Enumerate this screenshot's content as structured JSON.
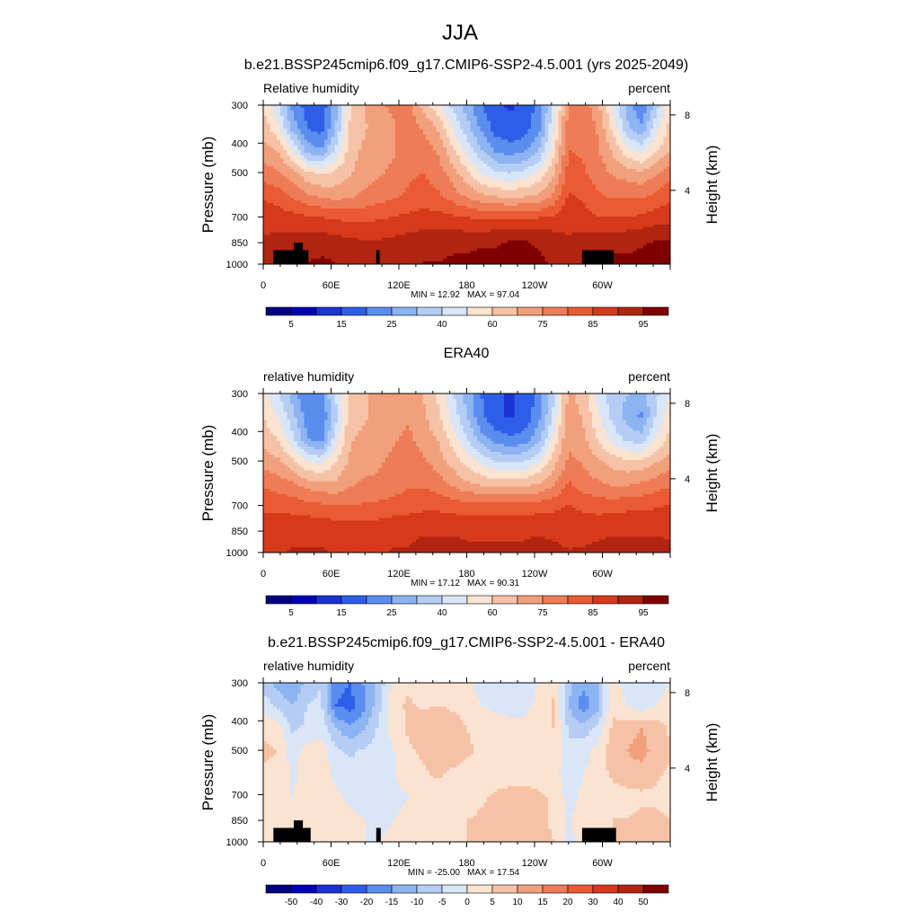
{
  "figure": {
    "title": "JJA"
  },
  "chart_data": [
    {
      "type": "heatmap",
      "title": "b.e21.BSSP245cmip6.f09_g17.CMIP6-SSP2-4.5.001 (yrs 2025-2049)",
      "left_label": "Relative humidity",
      "right_label": "percent",
      "ylabel": "Pressure (mb)",
      "ylabel_right": "Height (km)",
      "x_ticks": [
        "0",
        "60E",
        "120E",
        "180",
        "120W",
        "60W"
      ],
      "y_ticks": [
        "300",
        "400",
        "500",
        "700",
        "850",
        "1000"
      ],
      "height_ticks": [
        "8",
        "4"
      ],
      "xlim": [
        0,
        360
      ],
      "ylim": [
        1000,
        300
      ],
      "min_text": "MIN =  12.92",
      "max_text": "MAX =  97.04",
      "colorbar_labels": [
        "5",
        "15",
        "25",
        "40",
        "60",
        "75",
        "85",
        "95"
      ],
      "colorbar_colors": [
        "#00007f",
        "#0000b4",
        "#1a32d4",
        "#2e5ee8",
        "#5b8def",
        "#8cb3f2",
        "#b5cdf4",
        "#d9e6f7",
        "#fbe3d2",
        "#f6c2a6",
        "#f29f7c",
        "#ee7c56",
        "#ea5a33",
        "#d63a1a",
        "#b02410",
        "#7f0000"
      ],
      "cmin": 0,
      "cmax": 100,
      "field": [
        [
          55,
          45,
          30,
          22,
          20,
          35,
          55,
          62,
          68,
          70,
          72,
          60,
          52,
          42,
          35,
          25,
          20,
          18,
          20,
          28,
          45,
          70,
          72,
          65,
          50,
          35,
          25,
          40,
          55
        ],
        [
          60,
          52,
          35,
          25,
          22,
          38,
          58,
          62,
          66,
          68,
          72,
          68,
          62,
          50,
          40,
          30,
          22,
          20,
          22,
          30,
          50,
          72,
          74,
          68,
          55,
          40,
          32,
          48,
          58
        ],
        [
          65,
          62,
          50,
          35,
          32,
          45,
          60,
          64,
          66,
          68,
          73,
          72,
          68,
          58,
          48,
          38,
          30,
          28,
          30,
          38,
          55,
          75,
          74,
          70,
          62,
          52,
          48,
          55,
          62
        ],
        [
          72,
          70,
          65,
          58,
          55,
          58,
          62,
          66,
          68,
          70,
          74,
          75,
          72,
          66,
          58,
          50,
          45,
          44,
          46,
          52,
          62,
          78,
          76,
          72,
          68,
          66,
          64,
          68,
          72
        ],
        [
          80,
          78,
          74,
          70,
          68,
          66,
          68,
          70,
          72,
          74,
          76,
          78,
          76,
          72,
          68,
          64,
          62,
          61,
          62,
          64,
          70,
          82,
          80,
          76,
          74,
          74,
          74,
          76,
          80
        ],
        [
          86,
          85,
          84,
          83,
          82,
          81,
          80,
          80,
          81,
          82,
          83,
          84,
          84,
          83,
          82,
          81,
          81,
          81,
          81,
          82,
          83,
          86,
          84,
          82,
          82,
          82,
          83,
          85,
          86
        ],
        [
          88,
          89,
          90,
          91,
          91,
          90,
          89,
          88,
          88,
          89,
          90,
          91,
          91,
          92,
          92,
          93,
          93,
          94,
          94,
          93,
          91,
          88,
          90,
          91,
          92,
          92,
          93,
          94,
          94
        ],
        [
          90,
          91,
          93,
          94,
          95,
          94,
          92,
          91,
          91,
          92,
          93,
          94,
          94,
          95,
          95,
          96,
          96,
          97,
          96,
          95,
          93,
          90,
          92,
          94,
          95,
          95,
          96,
          96,
          96
        ]
      ],
      "topography": [
        {
          "lon0": 9,
          "lon1": 40,
          "pres": 900
        },
        {
          "lon0": 27,
          "lon1": 35,
          "pres": 850
        },
        {
          "lon0": 100,
          "lon1": 103,
          "pres": 900
        },
        {
          "lon0": 282,
          "lon1": 310,
          "pres": 900
        }
      ]
    },
    {
      "type": "heatmap",
      "title": "ERA40",
      "left_label": "relative humidity",
      "right_label": "percent",
      "ylabel": "Pressure (mb)",
      "ylabel_right": "Height (km)",
      "x_ticks": [
        "0",
        "60E",
        "120E",
        "180",
        "120W",
        "60W"
      ],
      "y_ticks": [
        "300",
        "400",
        "500",
        "700",
        "850",
        "1000"
      ],
      "height_ticks": [
        "8",
        "4"
      ],
      "xlim": [
        0,
        360
      ],
      "ylim": [
        1000,
        300
      ],
      "min_text": "MIN =  17.12",
      "max_text": "MAX =  90.31",
      "colorbar_labels": [
        "5",
        "15",
        "25",
        "40",
        "60",
        "75",
        "85",
        "95"
      ],
      "colorbar_colors": [
        "#00007f",
        "#0000b4",
        "#1a32d4",
        "#2e5ee8",
        "#5b8def",
        "#8cb3f2",
        "#b5cdf4",
        "#d9e6f7",
        "#fbe3d2",
        "#f6c2a6",
        "#f29f7c",
        "#ee7c56",
        "#ea5a33",
        "#d63a1a",
        "#b02410",
        "#7f0000"
      ],
      "cmin": 0,
      "cmax": 100,
      "field": [
        [
          52,
          45,
          35,
          25,
          30,
          45,
          58,
          62,
          64,
          66,
          66,
          62,
          55,
          45,
          35,
          25,
          20,
          18,
          20,
          28,
          42,
          64,
          60,
          48,
          40,
          38,
          35,
          42,
          50
        ],
        [
          56,
          50,
          40,
          28,
          25,
          42,
          60,
          62,
          64,
          66,
          68,
          64,
          58,
          48,
          38,
          26,
          20,
          18,
          20,
          30,
          46,
          66,
          62,
          52,
          42,
          35,
          30,
          44,
          54
        ],
        [
          60,
          56,
          46,
          32,
          28,
          48,
          62,
          64,
          66,
          68,
          70,
          66,
          62,
          54,
          44,
          34,
          28,
          26,
          28,
          36,
          52,
          68,
          64,
          56,
          48,
          42,
          40,
          50,
          58
        ],
        [
          66,
          64,
          58,
          50,
          48,
          56,
          64,
          66,
          68,
          70,
          72,
          70,
          66,
          60,
          54,
          48,
          44,
          42,
          44,
          50,
          60,
          70,
          68,
          64,
          60,
          58,
          58,
          62,
          66
        ],
        [
          74,
          72,
          70,
          66,
          64,
          64,
          68,
          70,
          70,
          72,
          74,
          74,
          72,
          68,
          64,
          62,
          60,
          60,
          61,
          63,
          68,
          76,
          72,
          70,
          68,
          68,
          70,
          72,
          74
        ],
        [
          80,
          80,
          79,
          78,
          77,
          76,
          76,
          76,
          77,
          78,
          79,
          80,
          80,
          79,
          78,
          78,
          78,
          78,
          78,
          79,
          80,
          82,
          80,
          79,
          79,
          80,
          80,
          81,
          82
        ],
        [
          84,
          85,
          86,
          86,
          86,
          85,
          84,
          84,
          85,
          86,
          86,
          87,
          87,
          87,
          87,
          87,
          87,
          87,
          87,
          87,
          86,
          85,
          86,
          86,
          87,
          87,
          87,
          87,
          87
        ],
        [
          86,
          87,
          88,
          88,
          88,
          87,
          86,
          86,
          87,
          88,
          88,
          89,
          89,
          89,
          88,
          88,
          88,
          88,
          88,
          89,
          89,
          88,
          88,
          89,
          89,
          89,
          89,
          89,
          88
        ]
      ],
      "topography": []
    },
    {
      "type": "heatmap",
      "title": "b.e21.BSSP245cmip6.f09_g17.CMIP6-SSP2-4.5.001 - ERA40",
      "left_label": "relative humidity",
      "right_label": "percent",
      "ylabel": "Pressure (mb)",
      "ylabel_right": "Height (km)",
      "x_ticks": [
        "0",
        "60E",
        "120E",
        "180",
        "120W",
        "60W"
      ],
      "y_ticks": [
        "300",
        "400",
        "500",
        "700",
        "850",
        "1000"
      ],
      "height_ticks": [
        "8",
        "4"
      ],
      "xlim": [
        0,
        360
      ],
      "ylim": [
        1000,
        300
      ],
      "min_text": "MIN = -25.00",
      "max_text": "MAX =  17.54",
      "colorbar_labels": [
        "-50",
        "-40",
        "-30",
        "-20",
        "-15",
        "-10",
        "-5",
        "0",
        "5",
        "10",
        "15",
        "20",
        "30",
        "40",
        "50"
      ],
      "colorbar_colors": [
        "#00007f",
        "#0000b4",
        "#1a32d4",
        "#2e5ee8",
        "#5b8def",
        "#8cb3f2",
        "#b5cdf4",
        "#d9e6f7",
        "#fbe3d2",
        "#f6c2a6",
        "#f29f7c",
        "#ee7c56",
        "#ea5a33",
        "#d63a1a",
        "#b02410",
        "#7f0000"
      ],
      "colorbar_levels": [
        -50,
        -40,
        -30,
        -20,
        -15,
        -10,
        -5,
        0,
        5,
        10,
        15,
        20,
        30,
        40,
        50
      ],
      "field": [
        [
          -8,
          -12,
          -15,
          -8,
          -5,
          -18,
          -20,
          -14,
          -8,
          2,
          4,
          2,
          2,
          2,
          1,
          -2,
          -3,
          -2,
          -2,
          0,
          3,
          -8,
          -14,
          -10,
          2,
          -2,
          -5,
          -3,
          0
        ],
        [
          -2,
          -6,
          -10,
          -5,
          -4,
          -20,
          -22,
          -16,
          -6,
          3,
          6,
          4,
          5,
          4,
          3,
          0,
          -1,
          -1,
          -2,
          2,
          6,
          -10,
          -18,
          -12,
          4,
          0,
          -3,
          0,
          3
        ],
        [
          4,
          3,
          -6,
          -4,
          -2,
          -10,
          -14,
          -10,
          -4,
          2,
          6,
          8,
          10,
          8,
          5,
          3,
          2,
          1,
          2,
          4,
          5,
          -6,
          -8,
          -4,
          6,
          8,
          10,
          8,
          4
        ],
        [
          6,
          5,
          -2,
          2,
          3,
          -4,
          -6,
          -4,
          -2,
          0,
          4,
          6,
          10,
          8,
          6,
          4,
          3,
          2,
          2,
          4,
          4,
          -4,
          -2,
          2,
          8,
          10,
          12,
          8,
          6
        ],
        [
          4,
          4,
          -1,
          3,
          4,
          -2,
          -3,
          -2,
          -1,
          0,
          2,
          4,
          6,
          4,
          3,
          3,
          2,
          1,
          2,
          2,
          2,
          -3,
          0,
          2,
          6,
          8,
          8,
          6,
          4
        ],
        [
          2,
          2,
          0,
          1,
          2,
          1,
          -1,
          -2,
          -2,
          -1,
          0,
          2,
          2,
          2,
          1,
          4,
          6,
          8,
          8,
          6,
          4,
          -2,
          1,
          2,
          3,
          3,
          4,
          4,
          3
        ],
        [
          1,
          1,
          1,
          2,
          3,
          2,
          1,
          0,
          -1,
          0,
          1,
          2,
          3,
          4,
          5,
          6,
          7,
          8,
          8,
          6,
          4,
          -1,
          3,
          4,
          5,
          5,
          6,
          6,
          5
        ],
        [
          2,
          2,
          2,
          3,
          3,
          2,
          1,
          0,
          0,
          1,
          2,
          2,
          3,
          4,
          5,
          6,
          7,
          8,
          8,
          7,
          5,
          -2,
          3,
          4,
          5,
          5,
          6,
          6,
          5
        ]
      ],
      "topography": [
        {
          "lon0": 9,
          "lon1": 42,
          "pres": 900
        },
        {
          "lon0": 27,
          "lon1": 35,
          "pres": 850
        },
        {
          "lon0": 100,
          "lon1": 104,
          "pres": 900
        },
        {
          "lon0": 282,
          "lon1": 312,
          "pres": 900
        }
      ]
    }
  ]
}
